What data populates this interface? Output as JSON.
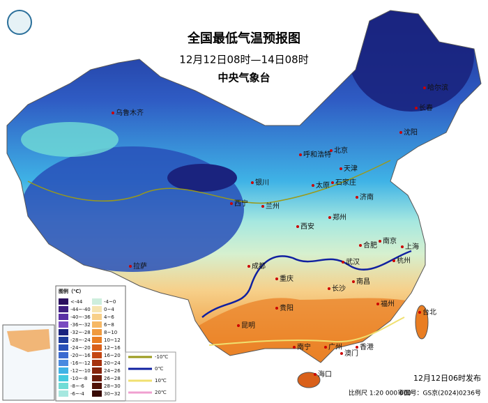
{
  "header": {
    "title": "全国最低气温预报图",
    "subtitle": "12月12日08时—14日08时",
    "issuer": "中央气象台"
  },
  "cities": [
    {
      "label": "乌鲁木齐"
    },
    {
      "label": "哈尔滨"
    },
    {
      "label": "长春"
    },
    {
      "label": "沈阳"
    },
    {
      "label": "北京"
    },
    {
      "label": "天津"
    },
    {
      "label": "呼和浩特"
    },
    {
      "label": "银川"
    },
    {
      "label": "太原"
    },
    {
      "label": "石家庄"
    },
    {
      "label": "济南"
    },
    {
      "label": "西宁"
    },
    {
      "label": "兰州"
    },
    {
      "label": "西安"
    },
    {
      "label": "郑州"
    },
    {
      "label": "合肥"
    },
    {
      "label": "南京"
    },
    {
      "label": "上海"
    },
    {
      "label": "杭州"
    },
    {
      "label": "拉萨"
    },
    {
      "label": "成都"
    },
    {
      "label": "重庆"
    },
    {
      "label": "武汉"
    },
    {
      "label": "长沙"
    },
    {
      "label": "南昌"
    },
    {
      "label": "福州"
    },
    {
      "label": "台北"
    },
    {
      "label": "贵阳"
    },
    {
      "label": "昆明"
    },
    {
      "label": "南宁"
    },
    {
      "label": "广州"
    },
    {
      "label": "香港"
    },
    {
      "label": "澳门"
    },
    {
      "label": "海口"
    }
  ],
  "legend": {
    "title": "图例（℃）",
    "items": [
      {
        "label": "<-44",
        "color": "#2b0f5e"
      },
      {
        "label": "-44~-40",
        "color": "#3f1d80"
      },
      {
        "label": "-40~-36",
        "color": "#5a2fa5"
      },
      {
        "label": "-36~-32",
        "color": "#7a4cc0"
      },
      {
        "label": "-32~-28",
        "color": "#1a237e"
      },
      {
        "label": "-28~-24",
        "color": "#1e3c9c"
      },
      {
        "label": "-24~-20",
        "color": "#2850b8"
      },
      {
        "label": "-20~-16",
        "color": "#3a6ad0"
      },
      {
        "label": "-16~-12",
        "color": "#4a8ae0"
      },
      {
        "label": "-12~-10",
        "color": "#3fb3e6"
      },
      {
        "label": "-10~-8",
        "color": "#45cbe0"
      },
      {
        "label": "-8~-6",
        "color": "#70dcd6"
      },
      {
        "label": "-6~-4",
        "color": "#a6e8e0"
      },
      {
        "label": "-4~0",
        "color": "#cdeedd"
      },
      {
        "label": "0~4",
        "color": "#f6e4b0"
      },
      {
        "label": "4~6",
        "color": "#f8d08a"
      },
      {
        "label": "6~8",
        "color": "#f6b865"
      },
      {
        "label": "8~10",
        "color": "#f09a3e"
      },
      {
        "label": "10~12",
        "color": "#e97d22"
      },
      {
        "label": "12~16",
        "color": "#d9601a"
      },
      {
        "label": "16~20",
        "color": "#c44612"
      },
      {
        "label": "20~24",
        "color": "#a6320e"
      },
      {
        "label": "24~26",
        "color": "#86240c"
      },
      {
        "label": "26~28",
        "color": "#6a1a0a"
      },
      {
        "label": "28~30",
        "color": "#501207"
      },
      {
        "label": "30~32",
        "color": "#380a04"
      }
    ]
  },
  "isotherms": [
    {
      "label": "-10℃",
      "color": "#9a9a1a"
    },
    {
      "label": "0℃",
      "color": "#1020a0"
    },
    {
      "label": "10℃",
      "color": "#f0e070"
    },
    {
      "label": "20℃",
      "color": "#f0a0d0"
    }
  ],
  "footer": {
    "issued": "12月12日06时发布",
    "scale": "比例尺 1:20 000 000",
    "approval": "审图号：GS京(2024)0236号"
  }
}
